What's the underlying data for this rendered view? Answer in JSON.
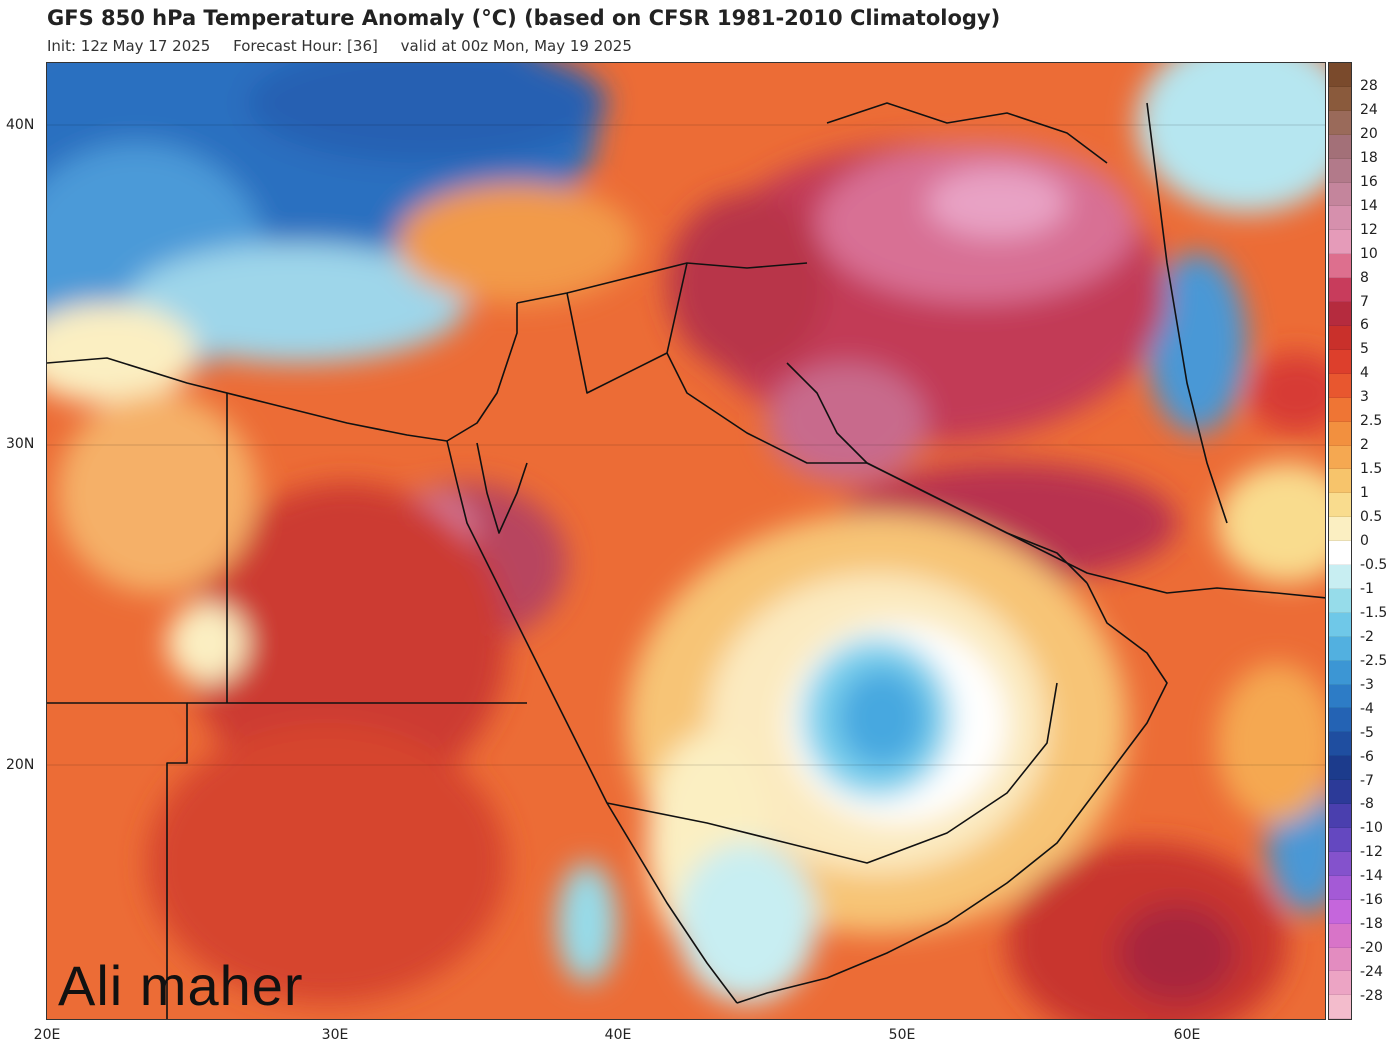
{
  "header": {
    "title": "GFS 850 hPa Temperature Anomaly (°C) (based on CFSR 1981-2010 Climatology)",
    "init": "Init: 12z May 17 2025",
    "forecast_hour": "Forecast Hour: [36]",
    "valid": "valid at 00z Mon, May 19 2025"
  },
  "axes": {
    "lat_labels": [
      "40N",
      "30N",
      "20N"
    ],
    "lon_labels": [
      "20E",
      "30E",
      "40E",
      "50E",
      "60E"
    ]
  },
  "colorbar": {
    "labels": [
      "28",
      "24",
      "20",
      "18",
      "16",
      "14",
      "12",
      "10",
      "8",
      "7",
      "6",
      "5",
      "4",
      "3",
      "2.5",
      "2",
      "1.5",
      "1",
      "0.5",
      "0",
      "-0.5",
      "-1",
      "-1.5",
      "-2",
      "-2.5",
      "-3",
      "-4",
      "-5",
      "-6",
      "-7",
      "-8",
      "-10",
      "-12",
      "-14",
      "-16",
      "-18",
      "-20",
      "-24",
      "-28"
    ],
    "colors": [
      "#8a5a3c",
      "#9a6a5a",
      "#a37078",
      "#b27a8a",
      "#c4859c",
      "#d690ad",
      "#e59bb9",
      "#dd6f8e",
      "#c83c5c",
      "#b52b3e",
      "#c9302b",
      "#dd3f2c",
      "#e8572f",
      "#ef7534",
      "#f2903f",
      "#f5a851",
      "#f7c46b",
      "#f9dc8e",
      "#fbefc2",
      "#ffffff",
      "#c8eef2",
      "#96dcea",
      "#6fc8e8",
      "#52b0e0",
      "#3c96d4",
      "#2d7cc6",
      "#2463b4",
      "#1f4ea0",
      "#1c3b8c",
      "#2c3a98",
      "#4a3fae",
      "#6448c0",
      "#8452cc",
      "#a45ad6",
      "#c566dc",
      "#d874c8",
      "#e38cc0",
      "#eca4c4",
      "#f3bccc"
    ]
  },
  "watermark": "Ali maher"
}
